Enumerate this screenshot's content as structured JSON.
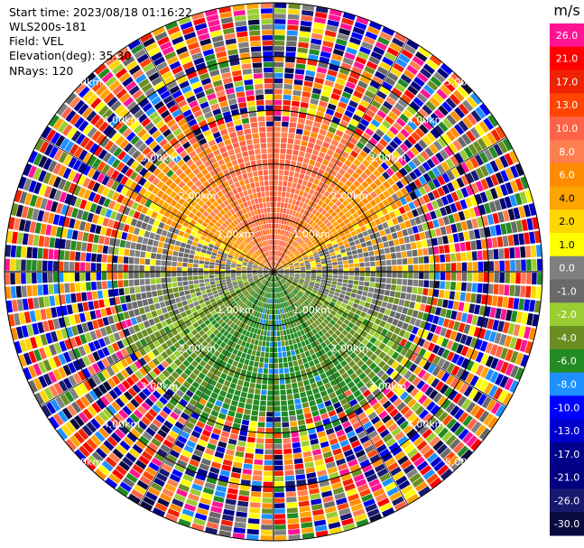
{
  "header": {
    "start_time": "Start time: 2023/08/18 01:16:22",
    "instrument": "WLS200s-181",
    "field": "Field: VEL",
    "elevation": "Elevation(deg): 35.30",
    "nrays": "NRays: 120"
  },
  "chart_data": {
    "type": "ppi",
    "field": "VEL",
    "units": "m/s",
    "nrays": 120,
    "elevation_deg": 35.3,
    "range_km": [
      0,
      5
    ],
    "range_rings_km": [
      1,
      2,
      3,
      4,
      5
    ],
    "ring_labels": [
      "1.00km",
      "2.00km",
      "3.00km",
      "4.00km",
      "5.00km"
    ],
    "colorbar": {
      "title": "m/s",
      "ticks": [
        "26.0",
        "21.0",
        "17.0",
        "13.0",
        "10.0",
        "8.0",
        "6.0",
        "4.0",
        "2.0",
        "1.0",
        "0.0",
        "-1.0",
        "-2.0",
        "-4.0",
        "-6.0",
        "-8.0",
        "-10.0",
        "-13.0",
        "-17.0",
        "-21.0",
        "-26.0",
        "-30.0"
      ],
      "colors": [
        "#ff1493",
        "#ff0000",
        "#ee2200",
        "#ff4500",
        "#ff6347",
        "#ff7f50",
        "#ff8c00",
        "#ffa500",
        "#ffd700",
        "#ffff00",
        "#808080",
        "#696969",
        "#9acd32",
        "#6b8e23",
        "#228b22",
        "#1e90ff",
        "#0000ff",
        "#0000cd",
        "#00008b",
        "#000080",
        "#191970",
        "#0a0a40"
      ],
      "sections": [
        {
          "range": [
            21,
            30
          ],
          "color": "#ff1493"
        },
        {
          "range": [
            17,
            21
          ],
          "color": "#ff0000"
        },
        {
          "range": [
            13,
            17
          ],
          "color": "#ee2200"
        },
        {
          "range": [
            10,
            13
          ],
          "color": "#ff4500"
        },
        {
          "range": [
            8,
            10
          ],
          "color": "#ff6347"
        },
        {
          "range": [
            6,
            8
          ],
          "color": "#ff7f50"
        },
        {
          "range": [
            4,
            6
          ],
          "color": "#ff8c00"
        },
        {
          "range": [
            2,
            4
          ],
          "color": "#ffa500"
        },
        {
          "range": [
            1,
            2
          ],
          "color": "#ffff00"
        },
        {
          "range": [
            0,
            1
          ],
          "color": "#808080"
        },
        {
          "range": [
            -1,
            0
          ],
          "color": "#696969"
        },
        {
          "range": [
            -2,
            -1
          ],
          "color": "#9acd32"
        },
        {
          "range": [
            -4,
            -2
          ],
          "color": "#6b8e23"
        },
        {
          "range": [
            -6,
            -4
          ],
          "color": "#228b22"
        },
        {
          "range": [
            -8,
            -6
          ],
          "color": "#1e90ff"
        },
        {
          "range": [
            -10,
            -8
          ],
          "color": "#1e90ff"
        },
        {
          "range": [
            -13,
            -10
          ],
          "color": "#0000ff"
        },
        {
          "range": [
            -17,
            -13
          ],
          "color": "#0000cd"
        },
        {
          "range": [
            -21,
            -17
          ],
          "color": "#00008b"
        },
        {
          "range": [
            -26,
            -21
          ],
          "color": "#000080"
        },
        {
          "range": [
            -30,
            -26
          ],
          "color": "#191970"
        }
      ]
    },
    "pattern": {
      "upper_half_velocity_mps": 8.0,
      "lower_half_velocity_mps": -5.0,
      "noise_beyond_km": 2.8
    }
  }
}
